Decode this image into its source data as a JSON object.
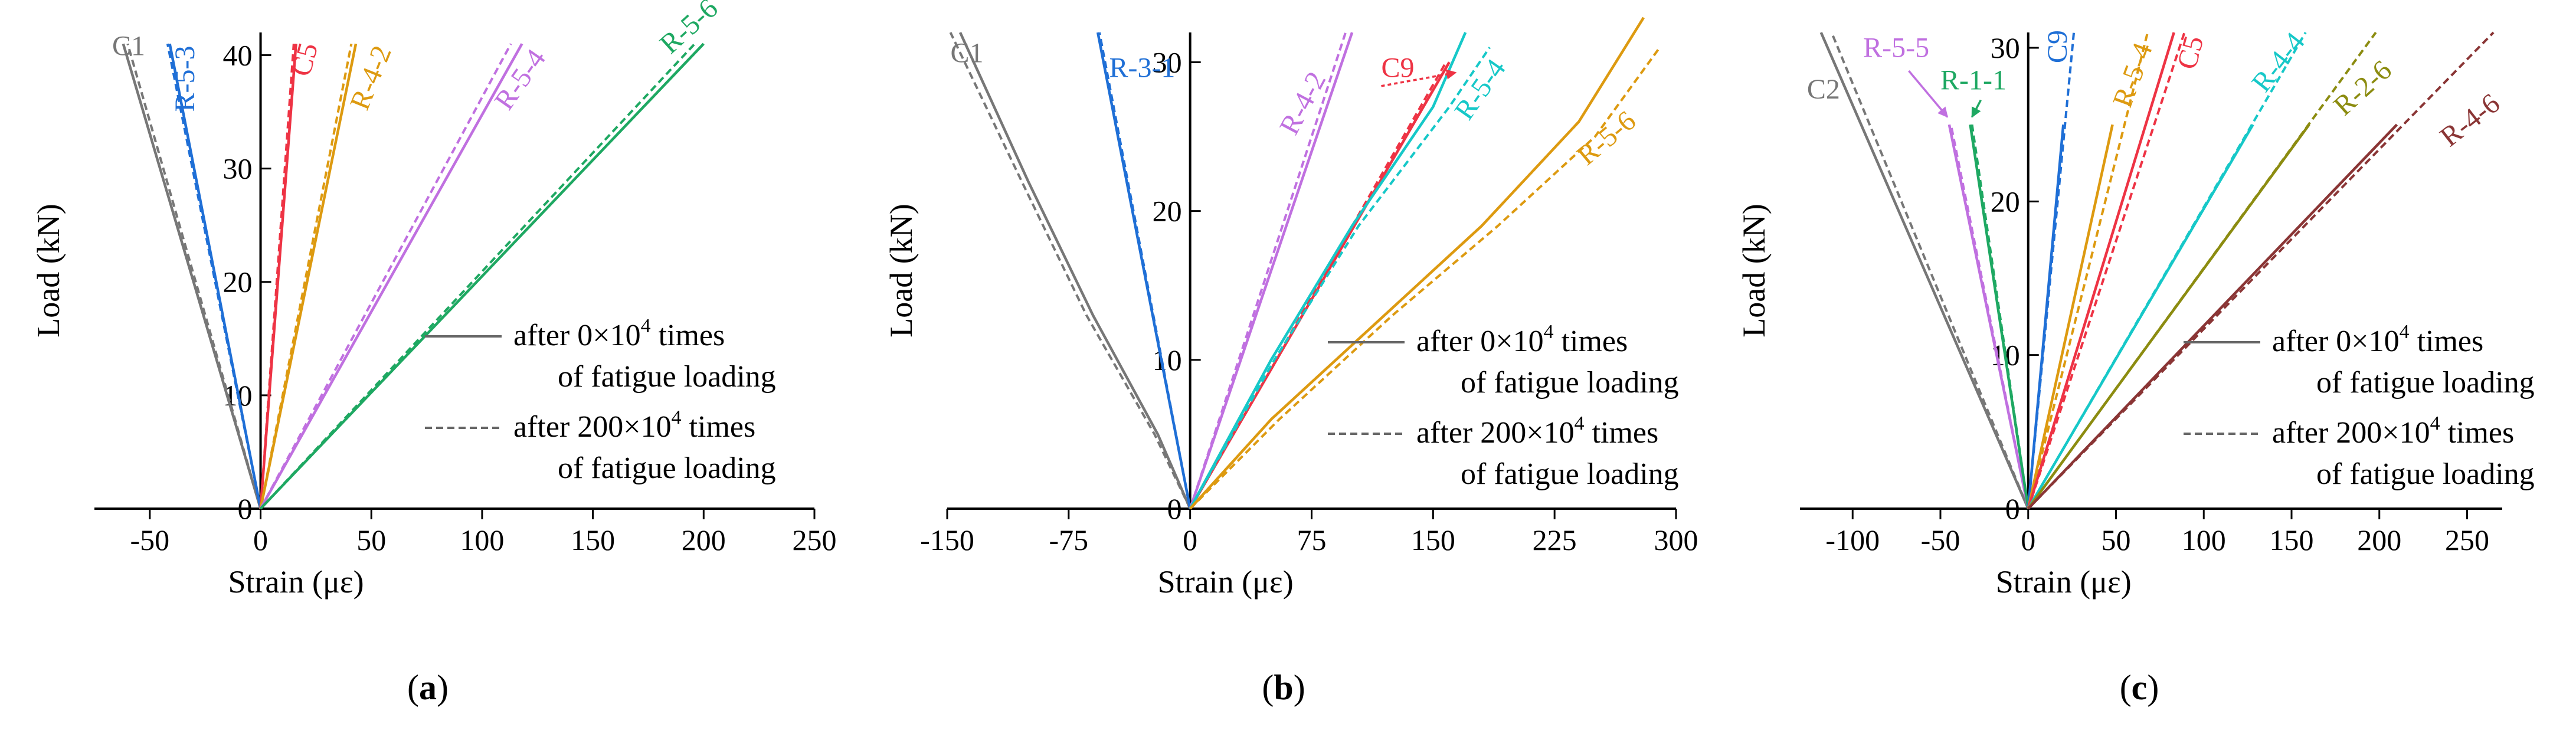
{
  "figure": {
    "panels": [
      "(a)",
      "(b)",
      "(c)"
    ],
    "colors": {
      "axis": "#000000",
      "gray": "#777777",
      "blue": "#1f6fd6",
      "red": "#ee3344",
      "orange": "#dd9a10",
      "purple": "#c070e0",
      "green": "#1ea862",
      "teal": "#16c8c8",
      "olive": "#8c8c10",
      "maroon": "#8a3535"
    }
  },
  "chart_data": [
    {
      "type": "line",
      "panel": "(a)",
      "xlabel": "Strain (με)",
      "ylabel": "Load (kN)",
      "xlim": [
        -75,
        250
      ],
      "ylim": [
        0,
        42
      ],
      "xticks": [
        -50,
        0,
        50,
        100,
        150,
        200,
        250
      ],
      "yticks": [
        0,
        10,
        20,
        30,
        40
      ],
      "legend": [
        {
          "style": "solid",
          "text": [
            "after 0×10",
            "4",
            " times",
            "of fatigue loading"
          ]
        },
        {
          "style": "dashed",
          "text": [
            "after 200×10",
            "4",
            " times",
            "of fatigue loading"
          ]
        }
      ],
      "series": [
        {
          "name": "C1",
          "color": "gray",
          "x": [
            0,
            -62
          ],
          "y": [
            0,
            41
          ],
          "x2": [
            0,
            -60
          ],
          "y2": [
            0,
            41
          ]
        },
        {
          "name": "R-5-3",
          "color": "blue",
          "x": [
            0,
            -41
          ],
          "y": [
            0,
            41
          ],
          "x2": [
            0,
            -42
          ],
          "y2": [
            0,
            41
          ]
        },
        {
          "name": "C5",
          "color": "red",
          "x": [
            0,
            16
          ],
          "y": [
            0,
            41
          ],
          "x2": [
            0,
            15
          ],
          "y2": [
            0,
            41
          ]
        },
        {
          "name": "R-4-2",
          "color": "orange",
          "x": [
            0,
            43
          ],
          "y": [
            0,
            41
          ],
          "x2": [
            0,
            41
          ],
          "y2": [
            0,
            41
          ]
        },
        {
          "name": "R-5-4",
          "color": "purple",
          "x": [
            0,
            118
          ],
          "y": [
            0,
            41
          ],
          "x2": [
            0,
            113
          ],
          "y2": [
            0,
            41
          ]
        },
        {
          "name": "R-5-6",
          "color": "green",
          "x": [
            0,
            200
          ],
          "y": [
            0,
            41
          ],
          "x2": [
            0,
            196
          ],
          "y2": [
            0,
            41
          ]
        }
      ],
      "labels": [
        {
          "text": "C1",
          "color": "gray",
          "x": -67,
          "y": 40,
          "rot": 0
        },
        {
          "text": "R-5-3",
          "color": "blue",
          "x": -30,
          "y": 35,
          "rot": -90
        },
        {
          "text": "C5",
          "color": "red",
          "x": 22,
          "y": 38,
          "rot": -75
        },
        {
          "text": "R-4-2",
          "color": "orange",
          "x": 48,
          "y": 35,
          "rot": -68
        },
        {
          "text": "R-5-4",
          "color": "purple",
          "x": 112,
          "y": 35,
          "rot": -55
        },
        {
          "text": "R-5-6",
          "color": "green",
          "x": 185,
          "y": 40,
          "rot": -42
        }
      ],
      "arrows": []
    },
    {
      "type": "line",
      "panel": "(b)",
      "xlabel": "Strain (με)",
      "ylabel": "Load (kN)",
      "xlim": [
        -150,
        300
      ],
      "ylim": [
        0,
        32
      ],
      "xticks": [
        -150,
        -75,
        0,
        75,
        150,
        225,
        300
      ],
      "yticks": [
        0,
        10,
        20,
        30
      ],
      "legend": [
        {
          "style": "solid",
          "text": [
            "after 0×10",
            "4",
            " times",
            "of fatigue loading"
          ]
        },
        {
          "style": "dashed",
          "text": [
            "after 200×10",
            "4",
            " times",
            "of fatigue loading"
          ]
        }
      ],
      "series": [
        {
          "name": "C1",
          "color": "gray",
          "x": [
            0,
            -20,
            -60,
            -100,
            -142
          ],
          "y": [
            0,
            5,
            13,
            22,
            32
          ],
          "x2": [
            0,
            -22,
            -64,
            -104,
            -148
          ],
          "y2": [
            0,
            5,
            13,
            22,
            32
          ]
        },
        {
          "name": "R-3-1",
          "color": "blue",
          "x": [
            0,
            -57
          ],
          "y": [
            0,
            32
          ],
          "x2": [
            0,
            -56
          ],
          "y2": [
            0,
            32
          ]
        },
        {
          "name": "R-4-2",
          "color": "purple",
          "x": [
            0,
            100
          ],
          "y": [
            0,
            32
          ],
          "x2": [
            0,
            96
          ],
          "y2": [
            0,
            32
          ]
        },
        {
          "name": "C9",
          "color": "red",
          "x": [
            0,
            160
          ],
          "y": [
            0,
            30
          ],
          "x2": [
            0,
            158
          ],
          "y2": [
            0,
            30
          ]
        },
        {
          "name": "R-5-4",
          "color": "teal",
          "x": [
            0,
            50,
            100,
            150,
            170
          ],
          "y": [
            0,
            10,
            19,
            27,
            32
          ],
          "x2": [
            0,
            52,
            104,
            160,
            185
          ],
          "y2": [
            0,
            10,
            19,
            27,
            31
          ]
        },
        {
          "name": "R-5-6",
          "color": "orange",
          "x": [
            0,
            50,
            120,
            180,
            240,
            280
          ],
          "y": [
            0,
            6,
            13,
            19,
            26,
            33
          ],
          "x2": [
            0,
            55,
            125,
            190,
            250,
            290
          ],
          "y2": [
            0,
            6,
            13,
            19,
            25,
            31
          ]
        }
      ],
      "labels": [
        {
          "text": "C1",
          "color": "gray",
          "x": -148,
          "y": 30,
          "rot": 0
        },
        {
          "text": "R-3-1",
          "color": "blue",
          "x": -50,
          "y": 29,
          "rot": 0
        },
        {
          "text": "R-4-2",
          "color": "purple",
          "x": 65,
          "y": 25,
          "rot": -62
        },
        {
          "text": "C9",
          "color": "red",
          "x": 118,
          "y": 29,
          "rot": 0
        },
        {
          "text": "R-5-4",
          "color": "teal",
          "x": 172,
          "y": 26,
          "rot": -55
        },
        {
          "text": "R-5-6",
          "color": "orange",
          "x": 245,
          "y": 23,
          "rot": -40
        }
      ],
      "arrows": [
        {
          "color": "red",
          "dashed": true,
          "x1": 118,
          "y1": 28.4,
          "x2": 164,
          "y2": 29.3
        }
      ]
    },
    {
      "type": "line",
      "panel": "(c)",
      "xlabel": "Strain (με)",
      "ylabel": "Load (kN)",
      "xlim": [
        -130,
        270
      ],
      "ylim": [
        0,
        31
      ],
      "xticks": [
        -100,
        -50,
        0,
        50,
        100,
        150,
        200,
        250
      ],
      "yticks": [
        0,
        10,
        20,
        30
      ],
      "legend": [
        {
          "style": "solid",
          "text": [
            "after 0×10",
            "4",
            " times",
            "of fatigue loading"
          ]
        },
        {
          "style": "dashed",
          "text": [
            "after 200×10",
            "4",
            " times",
            "of fatigue loading"
          ]
        }
      ],
      "series": [
        {
          "name": "C2",
          "color": "gray",
          "x": [
            0,
            -118
          ],
          "y": [
            0,
            31
          ],
          "x2": [
            0,
            -112
          ],
          "y2": [
            0,
            31
          ]
        },
        {
          "name": "R-5-5",
          "color": "purple",
          "x": [
            0,
            -45
          ],
          "y": [
            0,
            25
          ],
          "x2": [
            0,
            -44
          ],
          "y2": [
            0,
            25
          ]
        },
        {
          "name": "R-1-1",
          "color": "green",
          "x": [
            0,
            -33
          ],
          "y": [
            0,
            25
          ],
          "x2": [
            0,
            -32
          ],
          "y2": [
            0,
            25
          ]
        },
        {
          "name": "C9",
          "color": "blue",
          "x": [
            0,
            20
          ],
          "y": [
            0,
            25
          ],
          "x2": [
            0,
            26
          ],
          "y2": [
            0,
            31
          ]
        },
        {
          "name": "R-5-4",
          "color": "orange",
          "x": [
            0,
            48
          ],
          "y": [
            0,
            25
          ],
          "x2": [
            0,
            68
          ],
          "y2": [
            0,
            31
          ]
        },
        {
          "name": "C5",
          "color": "red",
          "x": [
            0,
            83
          ],
          "y": [
            0,
            31
          ],
          "x2": [
            0,
            89
          ],
          "y2": [
            0,
            31
          ]
        },
        {
          "name": "R-4-4",
          "color": "teal",
          "x": [
            0,
            128
          ],
          "y": [
            0,
            25
          ],
          "x2": [
            0,
            158
          ],
          "y2": [
            0,
            31
          ]
        },
        {
          "name": "R-2-6",
          "color": "olive",
          "x": [
            0,
            160
          ],
          "y": [
            0,
            25
          ],
          "x2": [
            0,
            198
          ],
          "y2": [
            0,
            31
          ]
        },
        {
          "name": "R-4-6",
          "color": "maroon",
          "x": [
            0,
            210
          ],
          "y": [
            0,
            25
          ],
          "x2": [
            0,
            265
          ],
          "y2": [
            0,
            31
          ]
        }
      ],
      "labels": [
        {
          "text": "R-5-5",
          "color": "purple",
          "x": -94,
          "y": 29.4,
          "rot": 0
        },
        {
          "text": "C2",
          "color": "gray",
          "x": -126,
          "y": 26.7,
          "rot": 0
        },
        {
          "text": "R-1-1",
          "color": "green",
          "x": -50,
          "y": 27.3,
          "rot": 0
        },
        {
          "text": "C9",
          "color": "blue",
          "x": 22,
          "y": 29,
          "rot": -90
        },
        {
          "text": "R-5-4",
          "color": "orange",
          "x": 58,
          "y": 26,
          "rot": -70
        },
        {
          "text": "C5",
          "color": "red",
          "x": 95,
          "y": 28.5,
          "rot": -75
        },
        {
          "text": "R-4-4",
          "color": "teal",
          "x": 135,
          "y": 27,
          "rot": -52
        },
        {
          "text": "R-2-6",
          "color": "olive",
          "x": 180,
          "y": 25.5,
          "rot": -42
        },
        {
          "text": "R-4-6",
          "color": "maroon",
          "x": 240,
          "y": 23.5,
          "rot": -38
        }
      ],
      "arrows": [
        {
          "color": "purple",
          "dashed": false,
          "x1": -68,
          "y1": 28.5,
          "x2": -46,
          "y2": 25.5
        },
        {
          "color": "green",
          "dashed": false,
          "x1": -27,
          "y1": 26.6,
          "x2": -32,
          "y2": 25.5
        }
      ]
    }
  ]
}
